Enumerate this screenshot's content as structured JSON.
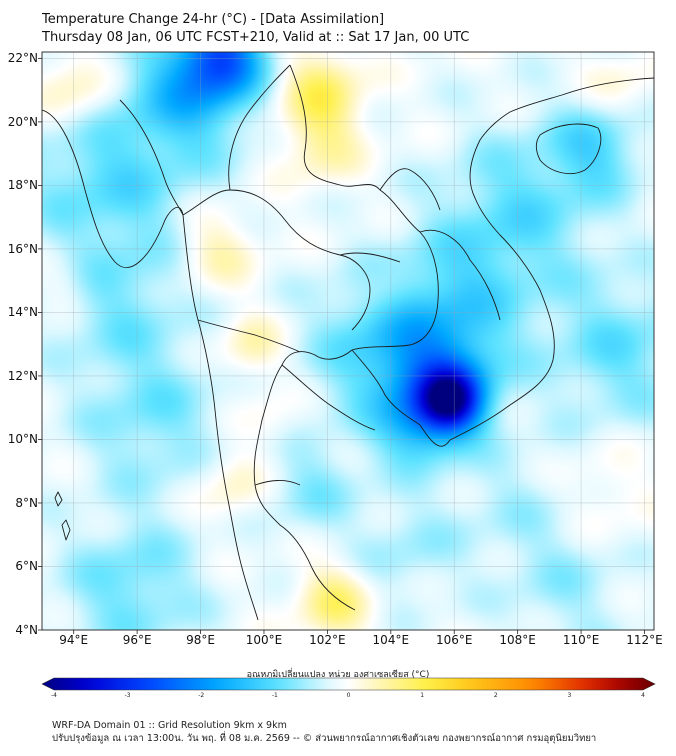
{
  "header": {
    "title_line1": "Temperature Change 24-hr (°C) - [Data Assimilation]",
    "title_line2": "Thursday 08 Jan, 06 UTC FCST+210, Valid at :: Sat 17 Jan, 00 UTC"
  },
  "map": {
    "lat_labels": [
      "22°N",
      "20°N",
      "18°N",
      "16°N",
      "14°N",
      "12°N",
      "10°N",
      "8°N",
      "6°N",
      "4°N"
    ],
    "lon_labels": [
      "94°E",
      "96°E",
      "98°E",
      "100°E",
      "102°E",
      "104°E",
      "106°E",
      "108°E",
      "110°E",
      "112°E"
    ],
    "lat_range": [
      4,
      22.2
    ],
    "lon_range": [
      93,
      112.3
    ],
    "field_anomalies": [
      {
        "lon": 105.9,
        "lat": 11.2,
        "value": -2.6,
        "spread": 0.7
      },
      {
        "lon": 105.6,
        "lat": 11.9,
        "value": -1.3,
        "spread": 1.2
      },
      {
        "lon": 104.8,
        "lat": 10.4,
        "value": -0.9,
        "spread": 0.9
      },
      {
        "lon": 103.8,
        "lat": 12.9,
        "value": -0.9,
        "spread": 1.6
      },
      {
        "lon": 106.3,
        "lat": 14.6,
        "value": -0.7,
        "spread": 1.6
      },
      {
        "lon": 98.7,
        "lat": 22.1,
        "value": -1.8,
        "spread": 0.9
      },
      {
        "lon": 97.8,
        "lat": 21.1,
        "value": -1.2,
        "spread": 1.3
      },
      {
        "lon": 95.2,
        "lat": 18.3,
        "value": -0.8,
        "spread": 2.0
      },
      {
        "lon": 95.5,
        "lat": 14.1,
        "value": -0.5,
        "spread": 1.5
      },
      {
        "lon": 108.2,
        "lat": 17.4,
        "value": -0.7,
        "spread": 1.7
      },
      {
        "lon": 110.5,
        "lat": 19.2,
        "value": -0.8,
        "spread": 1.0
      },
      {
        "lon": 111.2,
        "lat": 12.8,
        "value": -0.7,
        "spread": 1.6
      },
      {
        "lon": 107.8,
        "lat": 8.0,
        "value": -0.3,
        "spread": 1.4
      },
      {
        "lon": 96.5,
        "lat": 10.6,
        "value": -0.6,
        "spread": 1.6
      },
      {
        "lon": 95.8,
        "lat": 5.3,
        "value": -0.7,
        "spread": 1.5
      },
      {
        "lon": 101.5,
        "lat": 8.5,
        "value": -0.5,
        "spread": 1.1
      },
      {
        "lon": 104.5,
        "lat": 6.5,
        "value": -0.4,
        "spread": 1.2
      },
      {
        "lon": 109.5,
        "lat": 5.3,
        "value": -0.4,
        "spread": 1.4
      },
      {
        "lon": 101.8,
        "lat": 21.0,
        "value": 0.9,
        "spread": 0.9
      },
      {
        "lon": 101.8,
        "lat": 19.3,
        "value": 0.6,
        "spread": 0.9
      },
      {
        "lon": 94.0,
        "lat": 21.0,
        "value": 0.7,
        "spread": 0.9
      },
      {
        "lon": 98.5,
        "lat": 16.0,
        "value": 0.6,
        "spread": 0.9
      },
      {
        "lon": 99.6,
        "lat": 12.9,
        "value": 0.6,
        "spread": 0.7
      },
      {
        "lon": 102.2,
        "lat": 4.9,
        "value": 0.9,
        "spread": 0.8
      },
      {
        "lon": 99.0,
        "lat": 8.6,
        "value": 0.5,
        "spread": 0.8
      },
      {
        "lon": 110.8,
        "lat": 8.3,
        "value": 0.3,
        "spread": 1.0
      },
      {
        "lon": 103.8,
        "lat": 14.8,
        "value": 0.25,
        "spread": 0.6
      },
      {
        "lon": 93.7,
        "lat": 15.0,
        "value": 0.3,
        "spread": 0.7
      },
      {
        "lon": 100.2,
        "lat": 10.6,
        "value": 0.3,
        "spread": 0.7
      },
      {
        "lon": 111.2,
        "lat": 21.1,
        "value": 0.35,
        "spread": 0.8
      }
    ]
  },
  "colorbar": {
    "label": "อุณหภูมิเปลี่ยนแปลง หน่วย องศาเซลเซียส (°C)",
    "ticks": [
      "-4",
      "-3",
      "-2",
      "-1",
      "0",
      "1",
      "2",
      "3",
      "4"
    ],
    "vmin": -4,
    "vmax": 4,
    "colors": [
      "#00007f",
      "#0000d6",
      "#0047ff",
      "#00a8ff",
      "#5ee3ff",
      "#dcf8ff",
      "#ffffff",
      "#fff7c8",
      "#fff04a",
      "#ffc61a",
      "#ff8a00",
      "#e02a00",
      "#a00000",
      "#6a0000"
    ]
  },
  "footer": {
    "line1": "WRF-DA Domain 01 :: Grid Resolution 9km x 9km",
    "line2": "ปรับปรุงข้อมูล ณ เวลา 13:00น. วัน พฤ. ที่ 08 ม.ค. 2569 -- © ส่วนพยากรณ์อากาศเชิงตัวเลข กองพยากรณ์อากาศ กรมอุตุนิยมวิทยา"
  }
}
